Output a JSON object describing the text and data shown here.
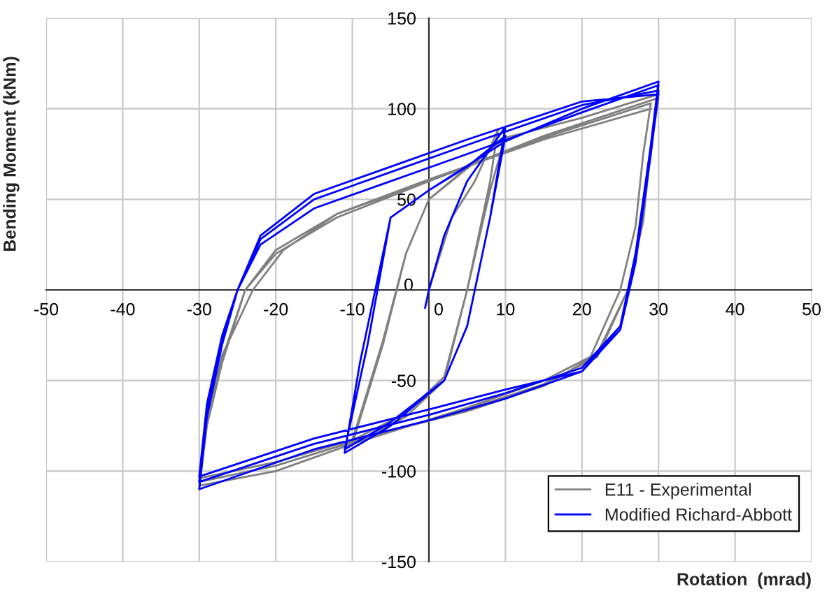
{
  "chart_data": {
    "type": "line",
    "xlabel": "Rotation  (mrad)",
    "ylabel": "Bending Moment (kNm)",
    "xlim": [
      -50,
      50
    ],
    "ylim": [
      -150,
      150
    ],
    "xticks": [
      -50,
      -40,
      -30,
      -20,
      -10,
      0,
      10,
      20,
      30,
      40,
      50
    ],
    "yticks": [
      -150,
      -100,
      -50,
      0,
      50,
      100,
      150
    ],
    "grid": true,
    "legend": "bottom right",
    "series": [
      {
        "name": "E11 - Experimental",
        "color": "#808080",
        "x": [
          0,
          3,
          6,
          9,
          8,
          5,
          2,
          -3,
          -10,
          -6,
          -3,
          0,
          10,
          8,
          5,
          2,
          -3,
          -10,
          -6,
          -3,
          0,
          10,
          20,
          30,
          29,
          28,
          26,
          22,
          15,
          5,
          -10,
          -20,
          -30,
          -29,
          -27,
          -24,
          -20,
          -12,
          0,
          15,
          30,
          29,
          28,
          26,
          22,
          15,
          5,
          -10,
          -20,
          -30,
          -29,
          -27,
          -24,
          -20,
          -12,
          0,
          15,
          29,
          28,
          27,
          25,
          21,
          15,
          5,
          -10,
          -20,
          -30,
          -29,
          -27,
          -23,
          -19,
          -12,
          0,
          15,
          29
        ],
        "values": [
          0,
          40,
          60,
          88,
          60,
          0,
          -50,
          -70,
          -85,
          -30,
          20,
          50,
          85,
          55,
          0,
          -48,
          -68,
          -83,
          -28,
          20,
          50,
          84,
          95,
          108,
          80,
          40,
          0,
          -35,
          -50,
          -65,
          -85,
          -100,
          -108,
          -75,
          -40,
          0,
          20,
          40,
          60,
          85,
          106,
          78,
          38,
          0,
          -37,
          -52,
          -66,
          -84,
          -97,
          -106,
          -72,
          -38,
          0,
          22,
          42,
          60,
          84,
          103,
          75,
          35,
          0,
          -38,
          -53,
          -67,
          -83,
          -95,
          -104,
          -70,
          -36,
          0,
          22,
          42,
          61,
          83,
          100
        ]
      },
      {
        "name": "Modified Richard-Abbott",
        "color": "#0000ff",
        "x": [
          0,
          -0.5,
          0,
          2,
          5,
          10,
          8,
          5,
          2,
          -5,
          -11,
          -9,
          -7,
          -5,
          0,
          5,
          10,
          8,
          5,
          2,
          -5,
          -11,
          -8,
          -5,
          0,
          10,
          20,
          30,
          29,
          27,
          25,
          20,
          10,
          0,
          -15,
          -30,
          -29,
          -27,
          -25,
          -22,
          -15,
          -5,
          5,
          20,
          30,
          29,
          27,
          25,
          20,
          10,
          0,
          -15,
          -30,
          -29,
          -27,
          -25,
          -22,
          -15,
          -5,
          5,
          20,
          30,
          29,
          27,
          25,
          20,
          10,
          0,
          -15,
          -30,
          -29,
          -27,
          -25,
          -22,
          -15,
          -5,
          5,
          20,
          30
        ],
        "values": [
          0,
          -10,
          0,
          30,
          60,
          90,
          40,
          -20,
          -50,
          -75,
          -90,
          -40,
          0,
          40,
          55,
          68,
          85,
          40,
          -20,
          -50,
          -73,
          -88,
          -30,
          40,
          55,
          82,
          100,
          115,
          80,
          20,
          -20,
          -45,
          -60,
          -72,
          -88,
          -110,
          -70,
          -30,
          0,
          25,
          45,
          60,
          75,
          98,
          113,
          78,
          18,
          -20,
          -43,
          -57,
          -69,
          -85,
          -106,
          -66,
          -28,
          0,
          28,
          50,
          65,
          80,
          102,
          110,
          75,
          15,
          -22,
          -45,
          -55,
          -66,
          -82,
          -103,
          -63,
          -25,
          0,
          30,
          53,
          68,
          83,
          104,
          108
        ]
      }
    ]
  }
}
